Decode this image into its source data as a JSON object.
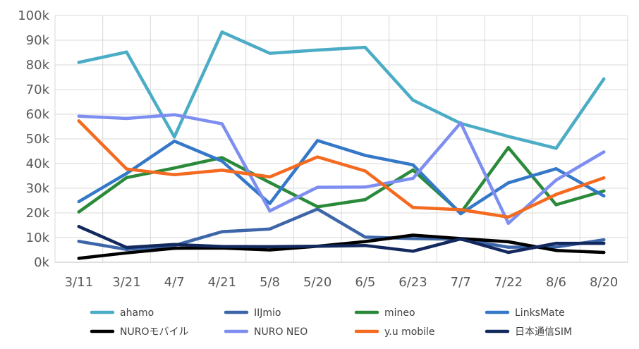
{
  "chart_data": {
    "type": "line",
    "title": "",
    "xlabel": "",
    "ylabel": "",
    "categories": [
      "3/11",
      "3/21",
      "4/7",
      "4/21",
      "5/8",
      "5/20",
      "6/5",
      "6/23",
      "7/7",
      "7/22",
      "8/6",
      "8/20"
    ],
    "ylim": [
      0,
      100000
    ],
    "yticks": [
      0,
      10000,
      20000,
      30000,
      40000,
      50000,
      60000,
      70000,
      80000,
      90000,
      100000
    ],
    "ytick_labels": [
      "0k",
      "10k",
      "20k",
      "30k",
      "40k",
      "50k",
      "60k",
      "70k",
      "80k",
      "90k",
      "100k"
    ],
    "grid": true,
    "legend_position": "bottom",
    "series": [
      {
        "name": "ahamo",
        "color": "#4bacc6",
        "values": [
          81000,
          85200,
          50800,
          93300,
          84700,
          86000,
          87100,
          65700,
          56300,
          51000,
          46200,
          74300
        ]
      },
      {
        "name": "IIJmio",
        "color": "#3d66a8",
        "values": [
          8500,
          5200,
          6800,
          12400,
          13500,
          21600,
          10200,
          9600,
          9300,
          6100,
          6200,
          9100
        ]
      },
      {
        "name": "mineo",
        "color": "#2a8a3a",
        "values": [
          20400,
          34300,
          38200,
          42400,
          32300,
          22500,
          25400,
          37400,
          20000,
          46500,
          23300,
          28900
        ]
      },
      {
        "name": "LinksMate",
        "color": "#3478c8",
        "values": [
          24600,
          36000,
          49100,
          41000,
          23800,
          49300,
          43300,
          39500,
          19700,
          32200,
          37900,
          26900
        ]
      },
      {
        "name": "NUROモバイル",
        "color": "#000000",
        "values": [
          1600,
          3800,
          5700,
          5800,
          5000,
          6500,
          8400,
          11000,
          9600,
          8300,
          4800,
          4000
        ]
      },
      {
        "name": "NURO NEO",
        "color": "#7d8ef0",
        "values": [
          59200,
          58300,
          59800,
          56100,
          20800,
          30400,
          30500,
          34000,
          56500,
          15800,
          33300,
          44700
        ]
      },
      {
        "name": "y.u mobile",
        "color": "#f46a20",
        "values": [
          57300,
          37800,
          35500,
          37300,
          34600,
          42700,
          37000,
          22200,
          21300,
          18300,
          27500,
          34200
        ]
      },
      {
        "name": "日本通信SIM",
        "color": "#13295e",
        "values": [
          14500,
          6000,
          7200,
          6400,
          6300,
          6500,
          6800,
          4500,
          9500,
          4000,
          7700,
          7700
        ]
      }
    ]
  }
}
